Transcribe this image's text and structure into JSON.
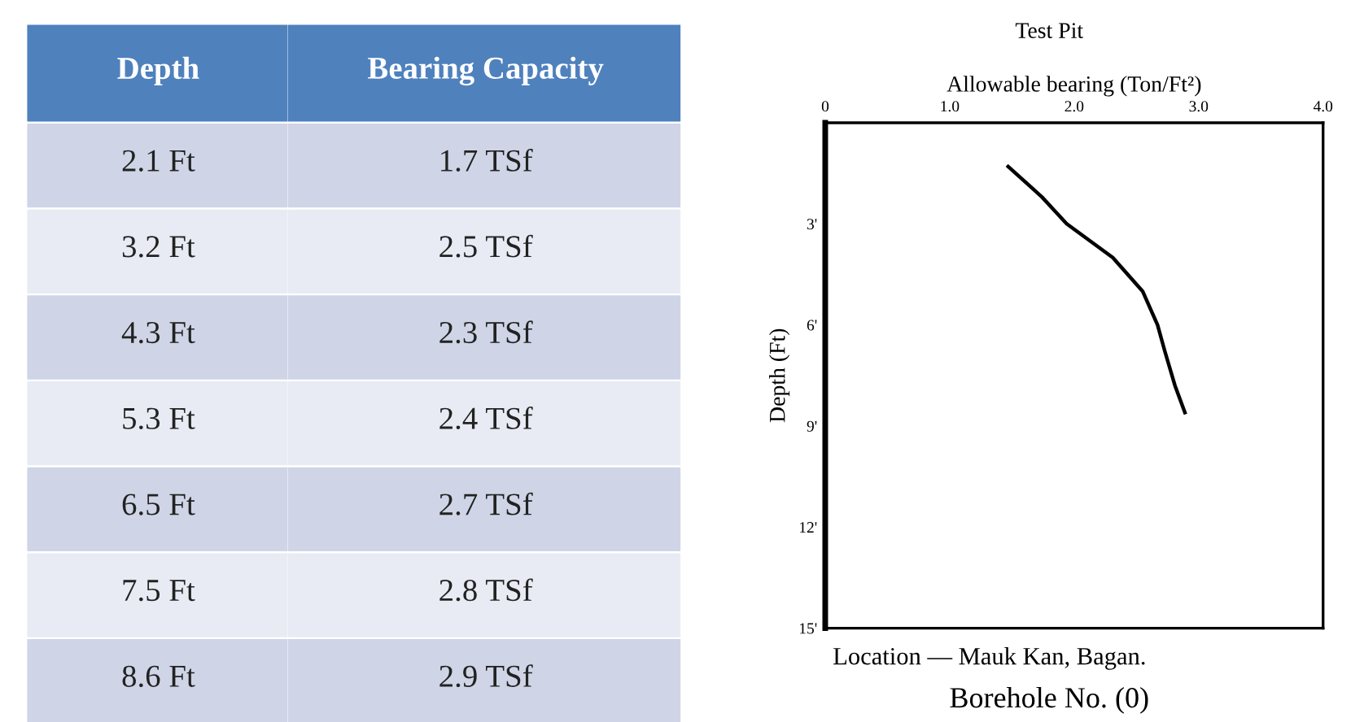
{
  "chart_data": [
    {
      "type": "other",
      "categories": [
        "Depth",
        "Bearing Capacity"
      ],
      "annotations": [
        "2.1 Ft",
        "1.7 TSf",
        "3.2 Ft",
        "2.5 TSf",
        "4.3 Ft",
        "2.3 TSf",
        "5.3 Ft",
        "2.4 TSf",
        "6.5 Ft",
        "2.7 TSf",
        "7.5 Ft",
        "2.8 TSf",
        "8.6 Ft",
        "2.9 TSf"
      ]
    },
    {
      "type": "line",
      "title": "Test Pit",
      "xlabel": "Allowable bearing (Ton/Ft²)",
      "ylabel": "Depth (Ft)",
      "x": [
        1.47,
        1.74,
        1.94,
        2.31,
        2.55,
        2.67,
        2.73,
        2.81,
        2.89
      ],
      "series": [
        {
          "color": "#000000",
          "values": [
            1.3,
            2.2,
            3.0,
            4.0,
            5.0,
            6.0,
            6.8,
            7.8,
            8.6
          ]
        }
      ],
      "xlim": [
        0,
        4
      ],
      "xticks": [
        0,
        {
          "value": 1,
          "label": "1.0"
        },
        {
          "value": 2,
          "label": "2.0"
        },
        {
          "value": 3,
          "label": "3.0"
        },
        {
          "value": 4,
          "label": "4.0"
        }
      ],
      "ylim": [
        15,
        0
      ],
      "yticks": [
        {
          "value": 3,
          "label": "3'"
        },
        {
          "value": 6,
          "label": "6'"
        },
        {
          "value": 9,
          "label": "9'"
        },
        {
          "value": 12,
          "label": "12'"
        },
        {
          "value": 15,
          "label": "15'"
        }
      ],
      "grid": false,
      "annotations": [
        "Location — Mauk Kan, Bagan.",
        "Borehole No. (0)"
      ]
    }
  ]
}
